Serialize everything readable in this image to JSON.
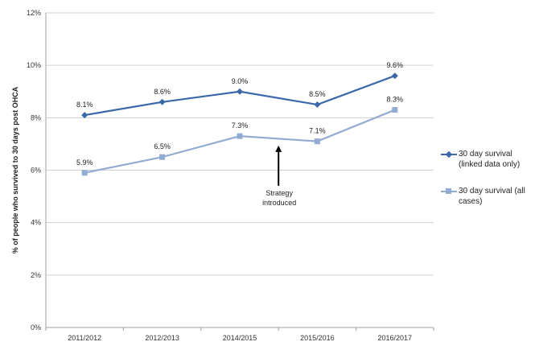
{
  "chart_data": {
    "type": "line",
    "categories": [
      "2011/2012",
      "2012/2013",
      "2014/2015",
      "2015/2016",
      "2016/2017"
    ],
    "ylabel": "% of people who survived to 30 days post OHCA",
    "ylim": [
      0,
      12
    ],
    "yticks": [
      0,
      2,
      4,
      6,
      8,
      10,
      12
    ],
    "ytick_labels": [
      "0%",
      "2%",
      "4%",
      "6%",
      "8%",
      "10%",
      "12%"
    ],
    "grid": true,
    "legend_position": "right",
    "series": [
      {
        "name": "30 day survival (linked data only)",
        "values": [
          8.1,
          8.6,
          9.0,
          8.5,
          9.6
        ],
        "labels": [
          "8.1%",
          "8.6%",
          "9.0%",
          "8.5%",
          "9.6%"
        ],
        "color": "#3a68a8",
        "marker": "diamond"
      },
      {
        "name": "30 day survival (all cases)",
        "values": [
          5.9,
          6.5,
          7.3,
          7.1,
          8.3
        ],
        "labels": [
          "5.9%",
          "6.5%",
          "7.3%",
          "7.1%",
          "8.3%"
        ],
        "color": "#93acd3",
        "marker": "square"
      }
    ],
    "annotation": {
      "lines": [
        "Strategy",
        "introduced"
      ],
      "x_between": [
        2,
        3
      ],
      "arrow_tip_y": 7.0
    }
  }
}
